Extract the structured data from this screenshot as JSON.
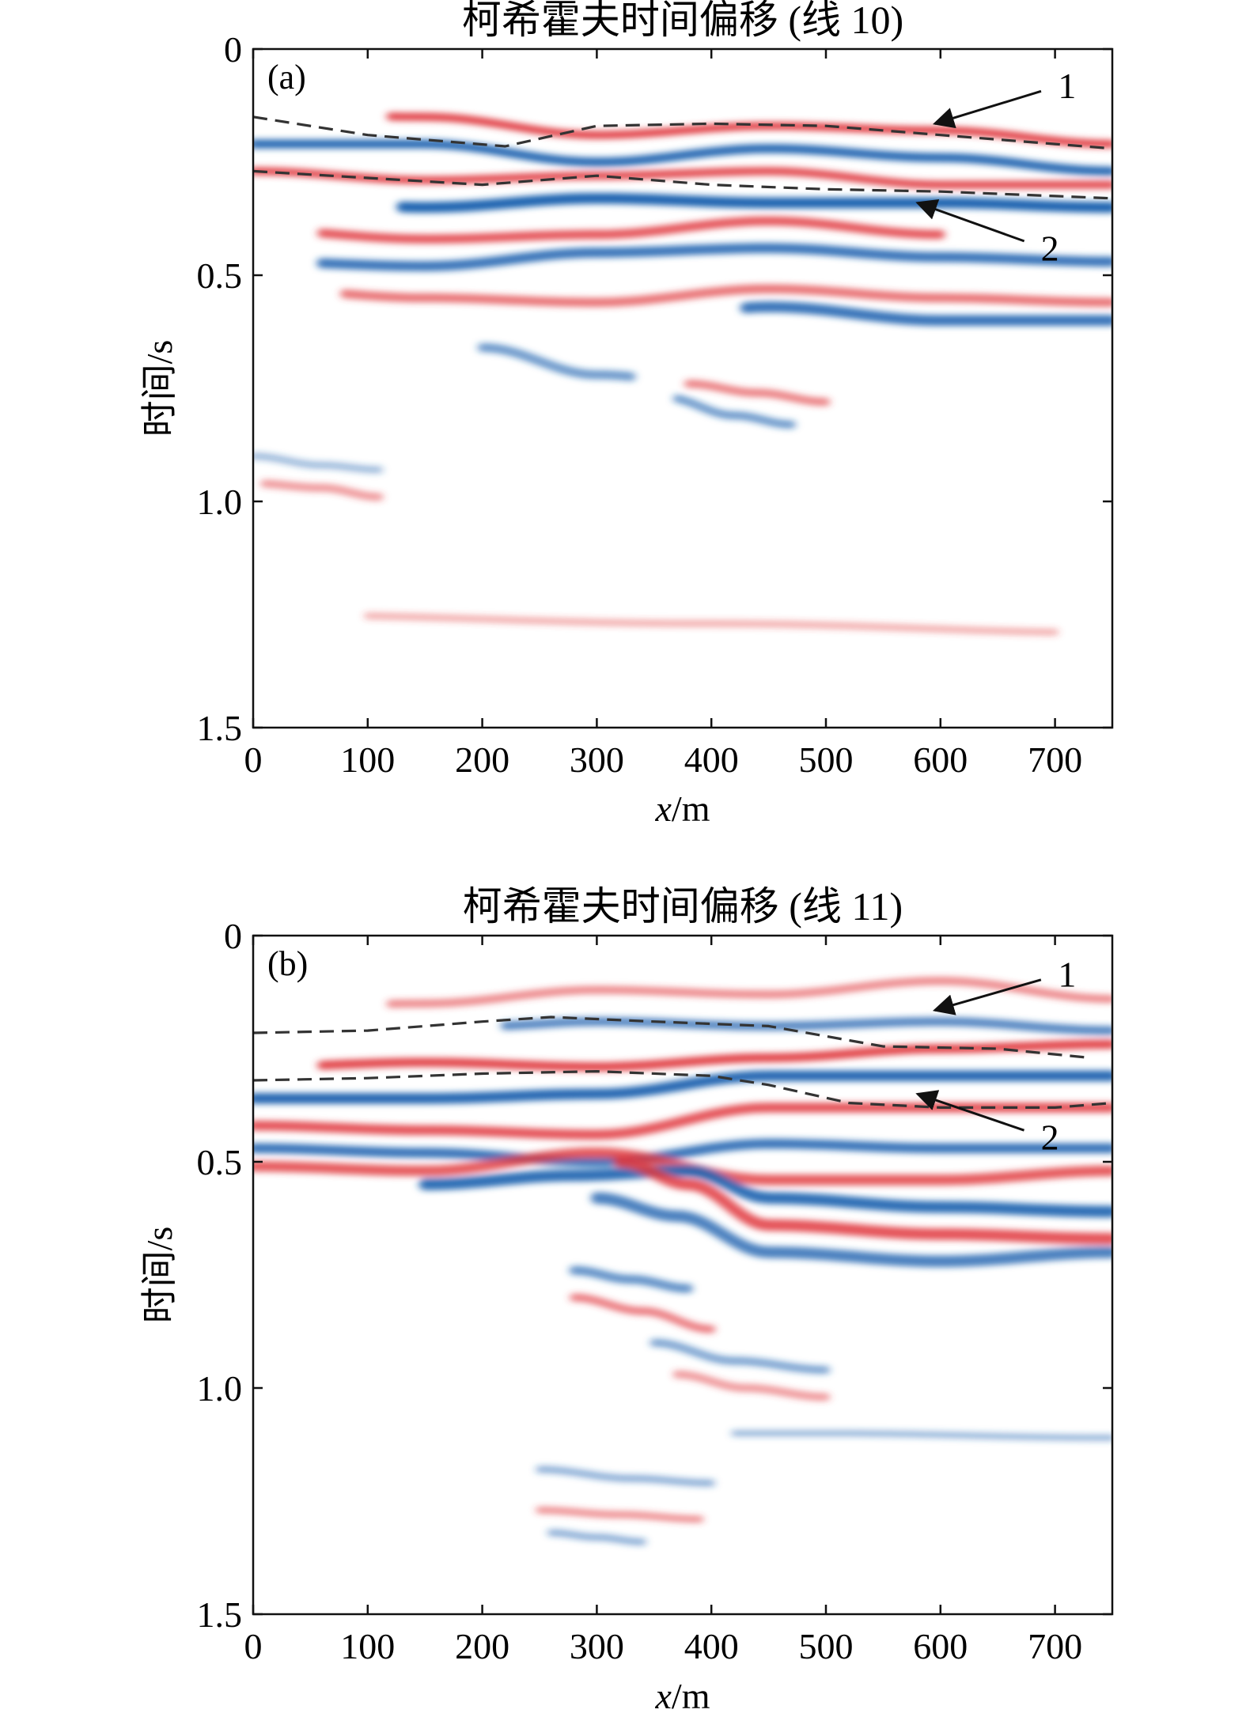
{
  "chart_data": [
    {
      "type": "heatmap",
      "panel_tag": "(a)",
      "title": "柯希霍夫时间偏移 (线 10)",
      "xlabel": "x/m",
      "ylabel": "时间/s",
      "xlim": [
        0,
        750
      ],
      "ylim": [
        0,
        1.5
      ],
      "y_inverted": true,
      "xticks": [
        0,
        100,
        200,
        300,
        400,
        500,
        600,
        700
      ],
      "yticks": [
        0,
        0.5,
        1.0,
        1.5
      ],
      "ytick_labels": [
        "0",
        "0.5",
        "1.0",
        "1.5"
      ],
      "colormap": {
        "positive": "#e0363c",
        "negative": "#1f63b0",
        "zero": "#ffffff"
      },
      "grid": false,
      "horizons": [
        {
          "label": "1",
          "x": [
            0,
            100,
            220,
            300,
            400,
            500,
            600,
            700,
            750
          ],
          "y": [
            0.15,
            0.19,
            0.215,
            0.17,
            0.165,
            0.17,
            0.19,
            0.21,
            0.22
          ]
        },
        {
          "label": "2",
          "x": [
            0,
            100,
            200,
            300,
            400,
            500,
            600,
            700,
            750
          ],
          "y": [
            0.27,
            0.285,
            0.3,
            0.28,
            0.3,
            0.31,
            0.315,
            0.325,
            0.33
          ]
        }
      ],
      "annotations": [
        {
          "text": "1",
          "point_x": 595,
          "point_y": 0.165,
          "label_x": 705,
          "label_y": 0.08
        },
        {
          "text": "2",
          "point_x": 580,
          "point_y": 0.34,
          "label_x": 690,
          "label_y": 0.44
        }
      ],
      "reflectors": [
        {
          "polarity": 1,
          "amp": 0.9,
          "w": 0.018,
          "x": [
            0,
            150,
            300,
            450,
            600,
            750
          ],
          "y": [
            0.14,
            0.15,
            0.19,
            0.17,
            0.18,
            0.21
          ],
          "extent": [
            120,
            750
          ]
        },
        {
          "polarity": -1,
          "amp": 0.95,
          "w": 0.02,
          "x": [
            0,
            150,
            300,
            450,
            600,
            750
          ],
          "y": [
            0.21,
            0.21,
            0.25,
            0.22,
            0.24,
            0.27
          ],
          "extent": [
            0,
            750
          ]
        },
        {
          "polarity": 1,
          "amp": 0.85,
          "w": 0.018,
          "x": [
            0,
            150,
            300,
            450,
            600,
            750
          ],
          "y": [
            0.27,
            0.29,
            0.28,
            0.27,
            0.3,
            0.3
          ],
          "extent": [
            0,
            750
          ]
        },
        {
          "polarity": -1,
          "amp": 1.0,
          "w": 0.024,
          "x": [
            0,
            150,
            300,
            450,
            600,
            750
          ],
          "y": [
            0.33,
            0.35,
            0.33,
            0.34,
            0.34,
            0.35
          ],
          "extent": [
            130,
            750
          ]
        },
        {
          "polarity": 1,
          "amp": 0.8,
          "w": 0.02,
          "x": [
            0,
            150,
            300,
            450,
            600,
            750
          ],
          "y": [
            0.4,
            0.42,
            0.41,
            0.38,
            0.41,
            0.43
          ],
          "extent": [
            60,
            600
          ]
        },
        {
          "polarity": -1,
          "amp": 0.85,
          "w": 0.022,
          "x": [
            0,
            150,
            300,
            450,
            600,
            750
          ],
          "y": [
            0.47,
            0.48,
            0.45,
            0.44,
            0.46,
            0.47
          ],
          "extent": [
            60,
            750
          ]
        },
        {
          "polarity": 1,
          "amp": 0.6,
          "w": 0.02,
          "x": [
            0,
            150,
            300,
            450,
            600,
            750
          ],
          "y": [
            0.53,
            0.55,
            0.56,
            0.53,
            0.55,
            0.56
          ],
          "extent": [
            80,
            750
          ]
        },
        {
          "polarity": -1,
          "amp": 0.85,
          "w": 0.024,
          "x": [
            0,
            150,
            300,
            450,
            600,
            750
          ],
          "y": [
            0.61,
            0.62,
            0.62,
            0.57,
            0.6,
            0.6
          ],
          "extent": [
            430,
            750
          ]
        },
        {
          "polarity": -1,
          "amp": 0.55,
          "w": 0.02,
          "x": [
            200,
            300,
            400
          ],
          "y": [
            0.66,
            0.72,
            0.74
          ],
          "extent": [
            200,
            330
          ]
        },
        {
          "polarity": 1,
          "amp": 0.5,
          "w": 0.018,
          "x": [
            380,
            440,
            500
          ],
          "y": [
            0.74,
            0.76,
            0.78
          ],
          "extent": [
            380,
            500
          ]
        },
        {
          "polarity": -1,
          "amp": 0.55,
          "w": 0.018,
          "x": [
            360,
            420,
            470
          ],
          "y": [
            0.77,
            0.81,
            0.83
          ],
          "extent": [
            370,
            470
          ]
        },
        {
          "polarity": 1,
          "amp": 0.35,
          "w": 0.018,
          "x": [
            0,
            60,
            110
          ],
          "y": [
            0.96,
            0.97,
            0.99
          ],
          "extent": [
            10,
            110
          ]
        },
        {
          "polarity": -1,
          "amp": 0.25,
          "w": 0.016,
          "x": [
            0,
            60,
            110
          ],
          "y": [
            0.9,
            0.92,
            0.93
          ],
          "extent": [
            0,
            110
          ]
        },
        {
          "polarity": 1,
          "amp": 0.18,
          "w": 0.016,
          "x": [
            0,
            400,
            750
          ],
          "y": [
            1.25,
            1.27,
            1.29
          ],
          "extent": [
            100,
            700
          ]
        }
      ]
    },
    {
      "type": "heatmap",
      "panel_tag": "(b)",
      "title": "柯希霍夫时间偏移 (线 11)",
      "xlabel": "x/m",
      "ylabel": "时间/s",
      "xlim": [
        0,
        750
      ],
      "ylim": [
        0,
        1.5
      ],
      "y_inverted": true,
      "xticks": [
        0,
        100,
        200,
        300,
        400,
        500,
        600,
        700
      ],
      "yticks": [
        0,
        0.5,
        1.0,
        1.5
      ],
      "ytick_labels": [
        "0",
        "0.5",
        "1.0",
        "1.5"
      ],
      "colormap": {
        "positive": "#e0363c",
        "negative": "#1f63b0",
        "zero": "#ffffff"
      },
      "grid": false,
      "horizons": [
        {
          "label": "1",
          "x": [
            0,
            100,
            200,
            260,
            350,
            450,
            550,
            650,
            730
          ],
          "y": [
            0.215,
            0.21,
            0.19,
            0.18,
            0.19,
            0.2,
            0.245,
            0.25,
            0.27
          ]
        },
        {
          "label": "2",
          "x": [
            0,
            100,
            200,
            300,
            400,
            450,
            520,
            600,
            700,
            750
          ],
          "y": [
            0.32,
            0.315,
            0.305,
            0.3,
            0.31,
            0.33,
            0.37,
            0.38,
            0.38,
            0.37
          ]
        }
      ],
      "annotations": [
        {
          "text": "1",
          "point_x": 595,
          "point_y": 0.165,
          "label_x": 705,
          "label_y": 0.085
        },
        {
          "text": "2",
          "point_x": 580,
          "point_y": 0.35,
          "label_x": 690,
          "label_y": 0.445
        }
      ],
      "reflectors": [
        {
          "polarity": 1,
          "amp": 0.45,
          "w": 0.018,
          "x": [
            0,
            150,
            300,
            450,
            600,
            750
          ],
          "y": [
            0.16,
            0.15,
            0.12,
            0.13,
            0.1,
            0.14
          ],
          "extent": [
            120,
            750
          ]
        },
        {
          "polarity": -1,
          "amp": 0.7,
          "w": 0.02,
          "x": [
            200,
            300,
            450,
            600,
            750
          ],
          "y": [
            0.2,
            0.19,
            0.2,
            0.19,
            0.21
          ],
          "extent": [
            220,
            750
          ]
        },
        {
          "polarity": 1,
          "amp": 0.9,
          "w": 0.02,
          "x": [
            0,
            150,
            300,
            450,
            600,
            750
          ],
          "y": [
            0.29,
            0.28,
            0.29,
            0.27,
            0.25,
            0.24
          ],
          "extent": [
            60,
            750
          ]
        },
        {
          "polarity": -1,
          "amp": 0.95,
          "w": 0.024,
          "x": [
            0,
            150,
            300,
            450,
            600,
            750
          ],
          "y": [
            0.36,
            0.36,
            0.35,
            0.31,
            0.31,
            0.31
          ],
          "extent": [
            0,
            750
          ]
        },
        {
          "polarity": 1,
          "amp": 0.8,
          "w": 0.022,
          "x": [
            0,
            150,
            300,
            450,
            600,
            750
          ],
          "y": [
            0.42,
            0.43,
            0.44,
            0.38,
            0.38,
            0.38
          ],
          "extent": [
            0,
            750
          ]
        },
        {
          "polarity": -1,
          "amp": 0.85,
          "w": 0.022,
          "x": [
            0,
            150,
            300,
            450,
            600,
            750
          ],
          "y": [
            0.47,
            0.48,
            0.5,
            0.46,
            0.47,
            0.47
          ],
          "extent": [
            0,
            750
          ]
        },
        {
          "polarity": 1,
          "amp": 0.75,
          "w": 0.024,
          "x": [
            0,
            150,
            300,
            450,
            600,
            750
          ],
          "y": [
            0.51,
            0.52,
            0.48,
            0.54,
            0.54,
            0.52
          ],
          "extent": [
            0,
            750
          ]
        },
        {
          "polarity": -1,
          "amp": 0.9,
          "w": 0.026,
          "x": [
            150,
            280,
            380,
            450,
            600,
            750
          ],
          "y": [
            0.55,
            0.53,
            0.52,
            0.58,
            0.6,
            0.61
          ],
          "extent": [
            150,
            750
          ]
        },
        {
          "polarity": 1,
          "amp": 0.8,
          "w": 0.026,
          "x": [
            320,
            380,
            450,
            600,
            750
          ],
          "y": [
            0.5,
            0.55,
            0.64,
            0.66,
            0.67
          ],
          "extent": [
            320,
            750
          ]
        },
        {
          "polarity": -1,
          "amp": 0.75,
          "w": 0.026,
          "x": [
            300,
            370,
            450,
            600,
            750
          ],
          "y": [
            0.58,
            0.62,
            0.7,
            0.72,
            0.7
          ],
          "extent": [
            300,
            750
          ]
        },
        {
          "polarity": -1,
          "amp": 0.6,
          "w": 0.02,
          "x": [
            280,
            330,
            380
          ],
          "y": [
            0.74,
            0.76,
            0.78
          ],
          "extent": [
            280,
            380
          ]
        },
        {
          "polarity": 1,
          "amp": 0.55,
          "w": 0.018,
          "x": [
            280,
            340,
            400
          ],
          "y": [
            0.8,
            0.83,
            0.87
          ],
          "extent": [
            280,
            400
          ]
        },
        {
          "polarity": -1,
          "amp": 0.45,
          "w": 0.018,
          "x": [
            350,
            420,
            500
          ],
          "y": [
            0.9,
            0.94,
            0.96
          ],
          "extent": [
            350,
            500
          ]
        },
        {
          "polarity": 1,
          "amp": 0.35,
          "w": 0.018,
          "x": [
            370,
            430,
            500
          ],
          "y": [
            0.97,
            1.0,
            1.02
          ],
          "extent": [
            370,
            500
          ]
        },
        {
          "polarity": -1,
          "amp": 0.35,
          "w": 0.016,
          "x": [
            250,
            330,
            400
          ],
          "y": [
            1.18,
            1.2,
            1.21
          ],
          "extent": [
            250,
            400
          ]
        },
        {
          "polarity": 1,
          "amp": 0.4,
          "w": 0.016,
          "x": [
            250,
            320,
            390
          ],
          "y": [
            1.27,
            1.28,
            1.29
          ],
          "extent": [
            250,
            390
          ]
        },
        {
          "polarity": -1,
          "amp": 0.35,
          "w": 0.016,
          "x": [
            260,
            300,
            340
          ],
          "y": [
            1.32,
            1.33,
            1.34
          ],
          "extent": [
            260,
            340
          ]
        },
        {
          "polarity": -1,
          "amp": 0.3,
          "w": 0.014,
          "x": [
            300,
            500,
            750
          ],
          "y": [
            1.1,
            1.1,
            1.11
          ],
          "extent": [
            420,
            750
          ]
        }
      ]
    }
  ]
}
